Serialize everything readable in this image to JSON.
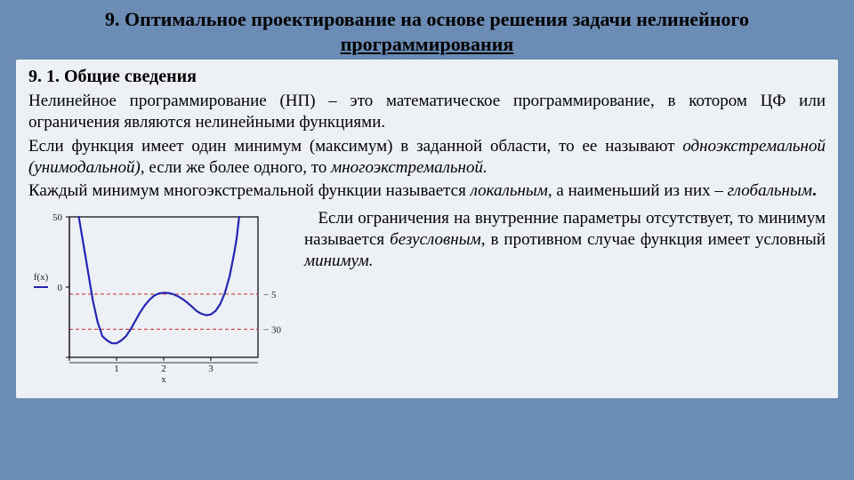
{
  "title_line1": "9. Оптимальное проектирование на основе решения задачи нелинейного",
  "title_line2_underlined": "программирования",
  "subheading": "9. 1. Общие сведения",
  "para1_a": "Нелинейное программирование (НП) – это математическое программирование, в котором ЦФ или ограничения являются нелинейными функциями.",
  "para2_a": "Если функция имеет один минимум (максимум) в заданной области, то ее называют ",
  "para2_b_ital": "одноэкстремальной (унимодальной)",
  "para2_c": ", если же более одного, то ",
  "para2_d_ital": "многоэкстремальной.",
  "para3_a": "Каждый минимум многоэкстремальной функции называется ",
  "para3_b_ital": "локальным,",
  "para3_c": " а наименьший из них – ",
  "para3_d_ital": "глобальным",
  "para3_e_bold": ".",
  "para4_a": "Если ограничения на внутренние параметры отсутствует, то минимум называется ",
  "para4_b_ital": "безусловным",
  "para4_c": ", в противном случае функция имеет условный ",
  "para4_d_ital": "минимум.",
  "chart": {
    "type": "line",
    "background_color": "#edf1f6",
    "axis_color": "#000000",
    "grid_color": "#c0c0c0",
    "curve_color": "#2525b5",
    "dashed_color": "#cc2a2a",
    "xlabel": "x",
    "ylabel": "f(x)",
    "xlim": [
      0,
      4
    ],
    "ylim": [
      -50,
      50
    ],
    "xtick_positions": [
      0,
      1,
      2,
      3
    ],
    "xtick_labels": [
      "",
      "1",
      "2",
      "3"
    ],
    "ytick_positions": [
      -50,
      0,
      50
    ],
    "ytick_labels": [
      "",
      "0",
      "50"
    ],
    "dashed_lines_y": [
      -30,
      -5
    ],
    "dashed_lines_labels": [
      "− 30",
      "− 5"
    ],
    "curve_points": [
      [
        0.2,
        50
      ],
      [
        0.3,
        30
      ],
      [
        0.4,
        10
      ],
      [
        0.5,
        -10
      ],
      [
        0.6,
        -25
      ],
      [
        0.7,
        -35
      ],
      [
        0.8,
        -38
      ],
      [
        0.9,
        -40
      ],
      [
        1.0,
        -40
      ],
      [
        1.1,
        -38
      ],
      [
        1.2,
        -35
      ],
      [
        1.3,
        -30
      ],
      [
        1.4,
        -24
      ],
      [
        1.5,
        -18
      ],
      [
        1.6,
        -13
      ],
      [
        1.7,
        -9
      ],
      [
        1.8,
        -6
      ],
      [
        1.9,
        -4.5
      ],
      [
        2.0,
        -4
      ],
      [
        2.1,
        -4.2
      ],
      [
        2.2,
        -5
      ],
      [
        2.3,
        -6.5
      ],
      [
        2.4,
        -8.5
      ],
      [
        2.5,
        -11
      ],
      [
        2.6,
        -14
      ],
      [
        2.7,
        -17
      ],
      [
        2.8,
        -19
      ],
      [
        2.9,
        -20
      ],
      [
        3.0,
        -19.5
      ],
      [
        3.1,
        -17
      ],
      [
        3.2,
        -12
      ],
      [
        3.3,
        -4
      ],
      [
        3.4,
        8
      ],
      [
        3.5,
        25
      ],
      [
        3.55,
        35
      ],
      [
        3.6,
        50
      ]
    ],
    "curve_width": 2.2,
    "axis_width": 1.2,
    "dashed_width": 1.0,
    "tick_fontsize": 11
  }
}
